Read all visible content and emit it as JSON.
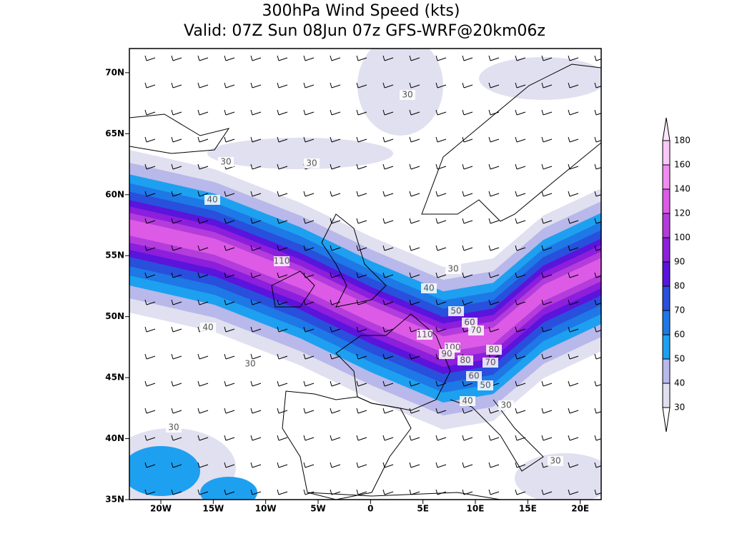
{
  "title": "300hPa Wind Speed (kts)",
  "subtitle": "Valid: 07Z Sun 08Jun 07z GFS-WRF@20km06z",
  "lat_labels": [
    {
      "value": 35,
      "label": "35N"
    },
    {
      "value": 40,
      "label": "40N"
    },
    {
      "value": 45,
      "label": "45N"
    },
    {
      "value": 50,
      "label": "50N"
    },
    {
      "value": 55,
      "label": "55N"
    },
    {
      "value": 60,
      "label": "60N"
    },
    {
      "value": 65,
      "label": "65N"
    },
    {
      "value": 70,
      "label": "70N"
    }
  ],
  "lon_labels": [
    {
      "value": -20,
      "label": "20W"
    },
    {
      "value": -15,
      "label": "15W"
    },
    {
      "value": -10,
      "label": "10W"
    },
    {
      "value": -5,
      "label": "5W"
    },
    {
      "value": 0,
      "label": "0"
    },
    {
      "value": 5,
      "label": "5E"
    },
    {
      "value": 10,
      "label": "10E"
    },
    {
      "value": 15,
      "label": "15E"
    },
    {
      "value": 20,
      "label": "20E"
    }
  ],
  "colorbar": {
    "levels": [
      30,
      40,
      50,
      60,
      70,
      80,
      90,
      100,
      120,
      140,
      160,
      180
    ],
    "colors": [
      "#ffffff",
      "#e0e0f0",
      "#b8b8ea",
      "#1ea0f0",
      "#1e78e6",
      "#2850dc",
      "#5a14dc",
      "#8c1edc",
      "#b43cdc",
      "#dc5ae6",
      "#f08cf0",
      "#f8c8f8",
      "#fce6fc"
    ]
  },
  "contour_labels": [
    30,
    30,
    30,
    40,
    110,
    30,
    40,
    50,
    60,
    70,
    110,
    100,
    80,
    90,
    80,
    70,
    60,
    50,
    40,
    30,
    40,
    30,
    30,
    30
  ]
}
